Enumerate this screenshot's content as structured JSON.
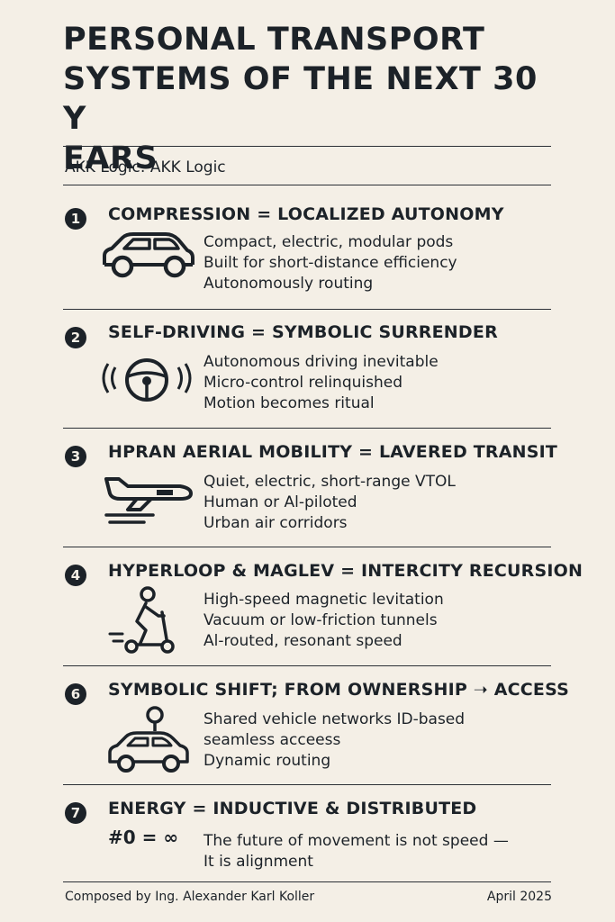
{
  "title": "PERSONAL TRANSPORT\nSYSTEMS OF THE NEXT 30 Y\nEARS",
  "subtitle": "AKK Logic: AKK Logic",
  "sections": [
    {
      "number": "1",
      "heading": "COMPRESSION = LOCALIZED AUTONOMY",
      "icon": "car-icon",
      "lines": [
        "Compact, electric, modular pods",
        "Built for short-distance efficiency",
        "Autonomously routing"
      ]
    },
    {
      "number": "2",
      "heading": "SELF-DRIVING = SYMBOLIC SURRENDER",
      "icon": "steering-wheel-icon",
      "lines": [
        "Autonomous driving inevitable",
        "Micro-control relinquished",
        "Motion becomes ritual"
      ]
    },
    {
      "number": "3",
      "heading": "HPRAN AERIAL MOBILITY = LAVERED TRANSIT",
      "icon": "air-vehicle-icon",
      "lines": [
        "Quiet, electric, short-range VTOL",
        "Human or Al-piloted",
        "Urban air corridors"
      ]
    },
    {
      "number": "4",
      "heading": "HYPERLOOP & MAGLEV = INTERCITY RECURSION",
      "icon": "scooter-rider-icon",
      "lines": [
        "High-speed magnetic levitation",
        "Vacuum or low-friction tunnels",
        "Al-routed, resonant speed"
      ]
    },
    {
      "number": "6",
      "heading": "SYMBOLIC SHIFT; FROM OWNERSHIP ➝ ACCESS",
      "icon": "shared-car-pin-icon",
      "lines": [
        "Shared vehicle networks   ID-based",
        "seamless acceess",
        "Dynamic routing"
      ]
    },
    {
      "number": "7",
      "heading": "ENERGY = INDUCTIVE & DISTRIBUTED",
      "formula": "#0 = ∞",
      "lines": [
        "The future of movement is not speed —",
        "It is alignment"
      ]
    }
  ],
  "footer": {
    "author": "Composed by Ing. Alexander Karl Koller",
    "date": "April 2025"
  }
}
